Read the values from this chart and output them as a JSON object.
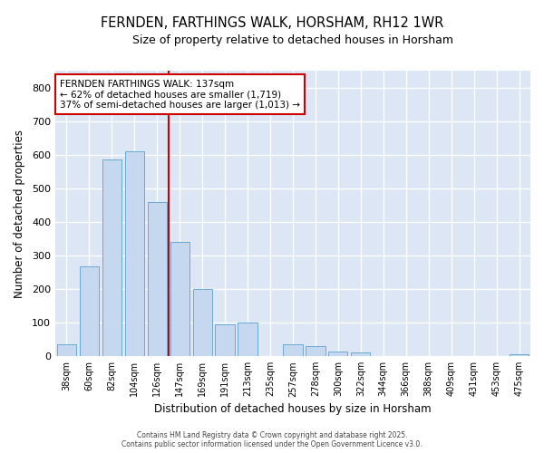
{
  "title": "FERNDEN, FARTHINGS WALK, HORSHAM, RH12 1WR",
  "subtitle": "Size of property relative to detached houses in Horsham",
  "xlabel": "Distribution of detached houses by size in Horsham",
  "ylabel": "Number of detached properties",
  "bar_labels": [
    "38sqm",
    "60sqm",
    "82sqm",
    "104sqm",
    "126sqm",
    "147sqm",
    "169sqm",
    "191sqm",
    "213sqm",
    "235sqm",
    "257sqm",
    "278sqm",
    "300sqm",
    "322sqm",
    "344sqm",
    "366sqm",
    "388sqm",
    "409sqm",
    "431sqm",
    "453sqm",
    "475sqm"
  ],
  "bar_values": [
    35,
    268,
    585,
    610,
    458,
    340,
    200,
    95,
    100,
    0,
    35,
    30,
    15,
    10,
    0,
    0,
    0,
    0,
    0,
    0,
    7
  ],
  "bar_color": "#c5d8f0",
  "bar_edgecolor": "#6aaad4",
  "bar_linewidth": 0.7,
  "vline_x_index": 5,
  "vline_color": "#cc0000",
  "vline_linewidth": 1.5,
  "annotation_text_line1": "FERNDEN FARTHINGS WALK: 137sqm",
  "annotation_text_line2": "← 62% of detached houses are smaller (1,719)",
  "annotation_text_line3": "37% of semi-detached houses are larger (1,013) →",
  "annotation_fontsize": 7.5,
  "annotation_box_color": "#ffffff",
  "annotation_box_edgecolor": "#cc0000",
  "ylim": [
    0,
    850
  ],
  "yticks": [
    0,
    100,
    200,
    300,
    400,
    500,
    600,
    700,
    800
  ],
  "fig_background_color": "#ffffff",
  "plot_background_color": "#dce6f5",
  "grid_color": "#ffffff",
  "title_fontsize": 10.5,
  "subtitle_fontsize": 9,
  "footer_line1": "Contains HM Land Registry data © Crown copyright and database right 2025.",
  "footer_line2": "Contains public sector information licensed under the Open Government Licence v3.0."
}
